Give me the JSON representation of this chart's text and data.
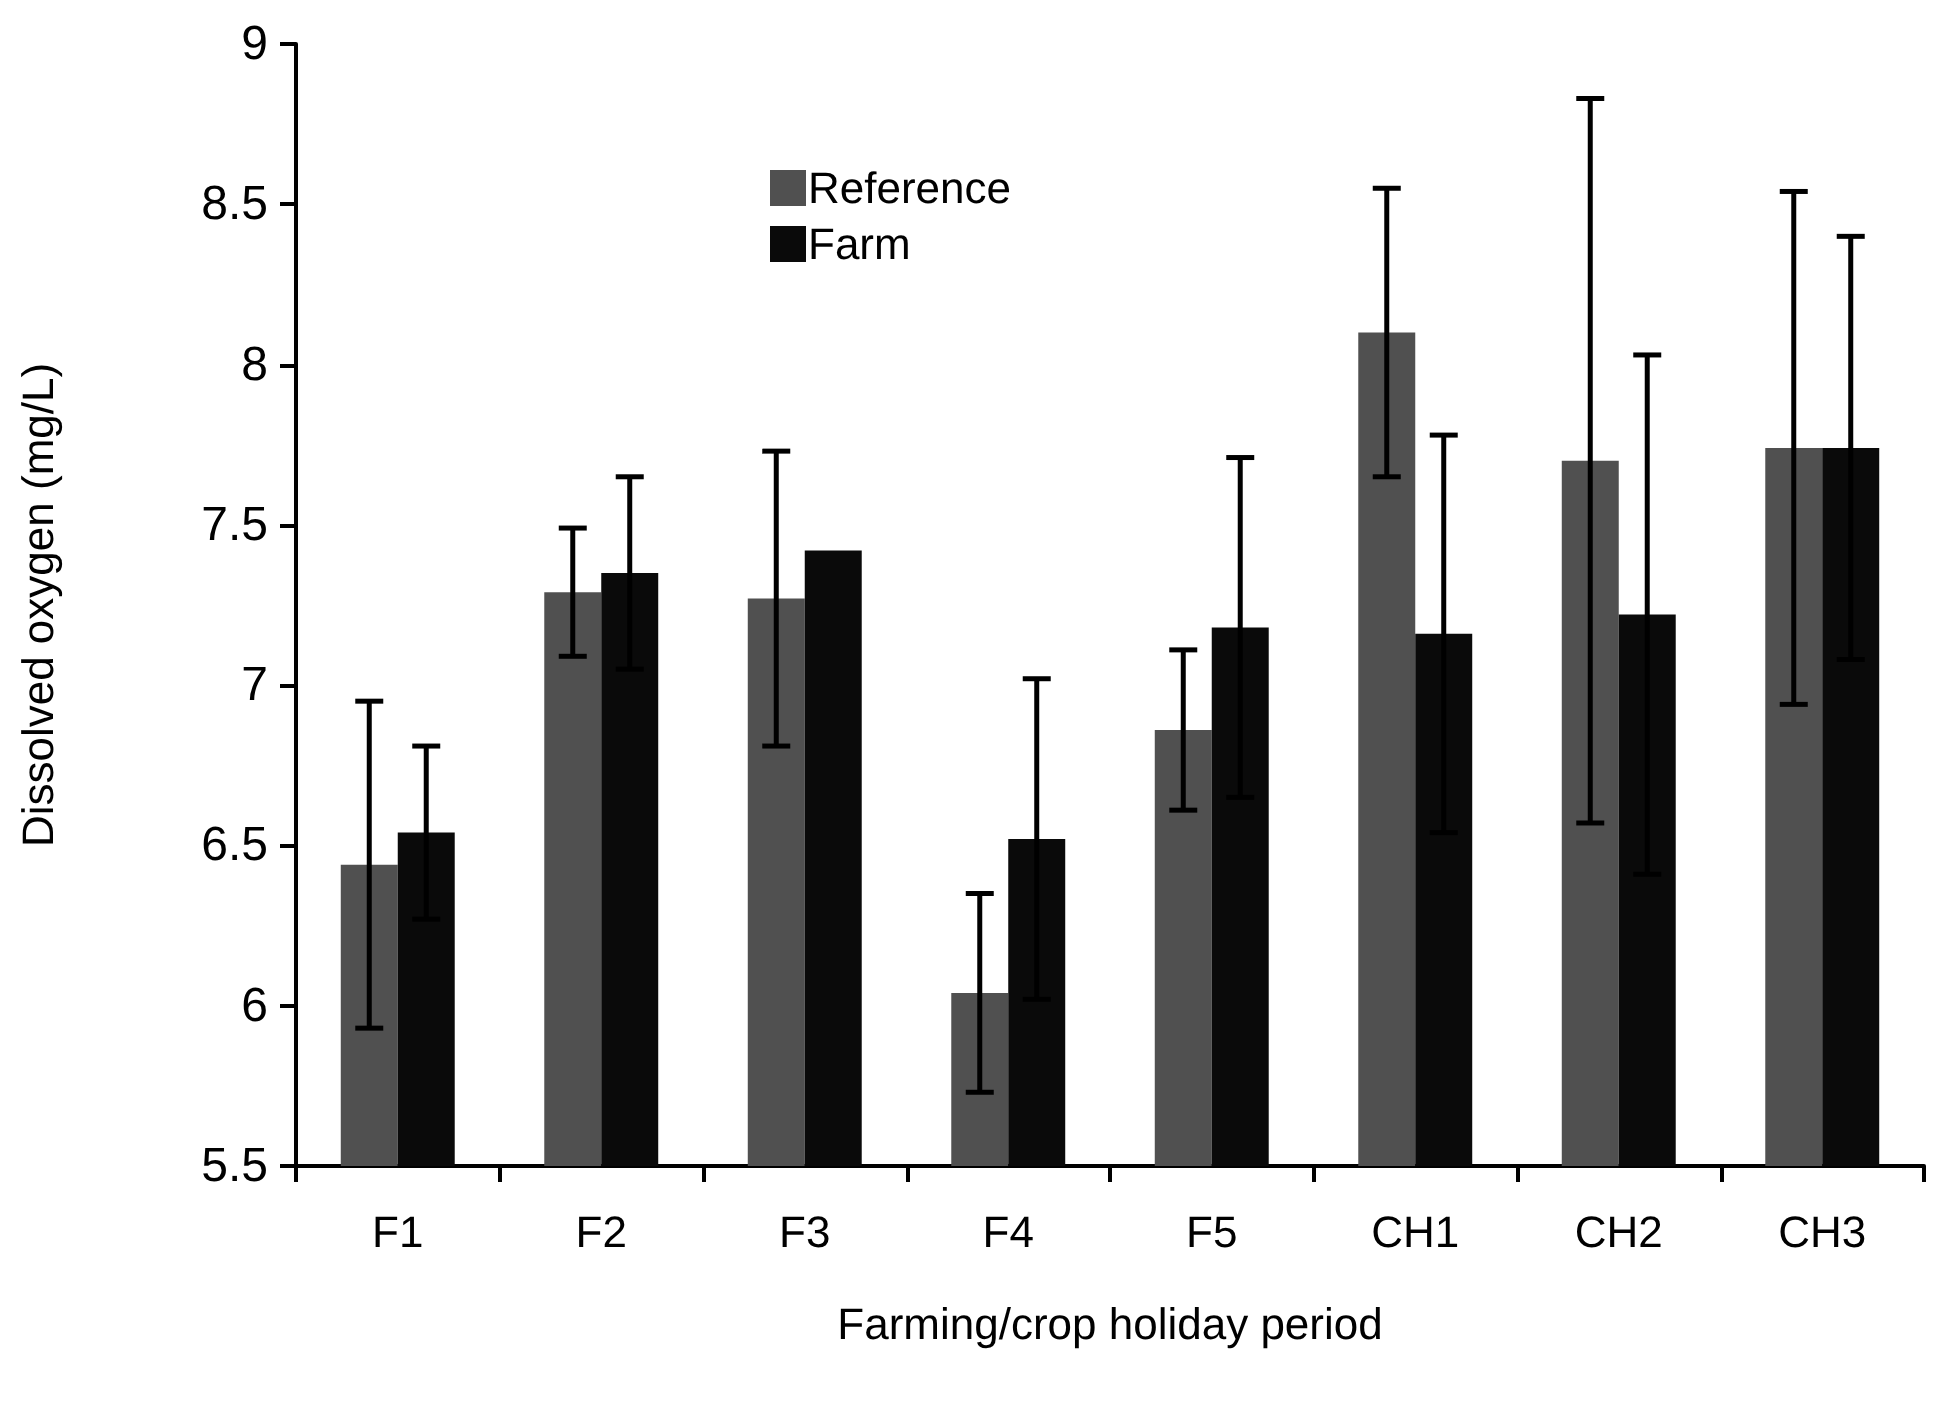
{
  "chart_data": {
    "type": "bar",
    "xlabel": "Farming/crop holiday period",
    "ylabel": "Dissolved oxygen (mg/L)",
    "categories": [
      "F1",
      "F2",
      "F3",
      "F4",
      "F5",
      "CH1",
      "CH2",
      "CH3"
    ],
    "series": [
      {
        "name": "Reference",
        "color": "#505050",
        "values": [
          6.44,
          7.29,
          7.27,
          6.04,
          6.86,
          8.1,
          7.7,
          7.74
        ],
        "errors": [
          0.51,
          0.2,
          0.46,
          0.31,
          0.25,
          0.45,
          1.13,
          0.8
        ]
      },
      {
        "name": "Farm",
        "color": "#0a0a0a",
        "values": [
          6.54,
          7.35,
          7.42,
          6.52,
          7.18,
          7.16,
          7.22,
          7.74
        ],
        "errors": [
          0.27,
          0.3,
          null,
          0.5,
          0.53,
          0.62,
          0.81,
          0.66
        ]
      }
    ],
    "ylim": [
      5.5,
      9
    ],
    "yticks": [
      5.5,
      6,
      6.5,
      7,
      7.5,
      8,
      8.5,
      9
    ],
    "grid": false,
    "legend": "top"
  }
}
